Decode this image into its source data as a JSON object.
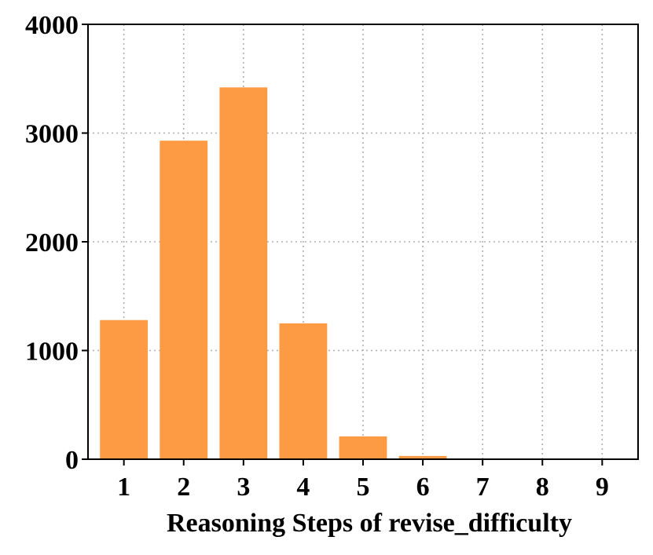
{
  "chart_data": {
    "type": "bar",
    "categories": [
      "1",
      "2",
      "3",
      "4",
      "5",
      "6",
      "7",
      "8",
      "9"
    ],
    "values": [
      1280,
      2930,
      3420,
      1250,
      210,
      30,
      3,
      1,
      1
    ],
    "title": "",
    "xlabel": "Reasoning Steps of revise_difficulty",
    "ylabel": "",
    "ylim": [
      0,
      4000
    ],
    "yticks": [
      "0",
      "1000",
      "2000",
      "3000",
      "4000"
    ],
    "grid": true,
    "bar_color": "#fd9b44"
  }
}
